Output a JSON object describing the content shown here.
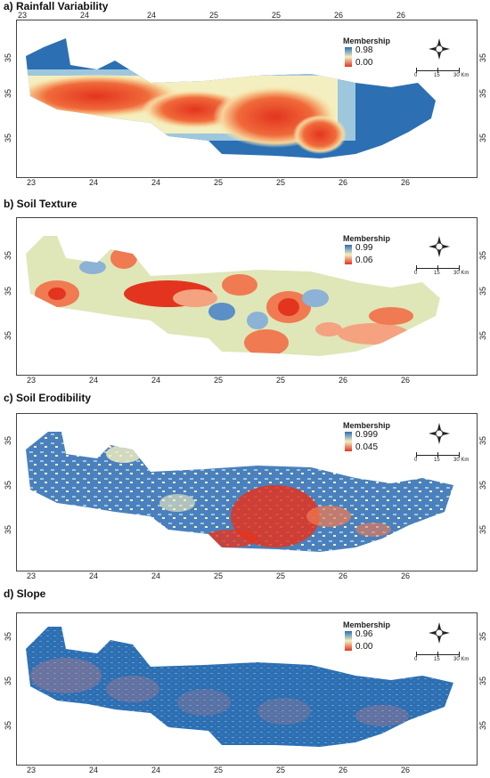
{
  "panels": [
    {
      "title": "a) Rainfall  Variability",
      "legend_title": "Membership",
      "max": "0.98",
      "min": "0.00"
    },
    {
      "title": "b) Soil Texture",
      "legend_title": "Membership",
      "max": "0.99",
      "min": "0.06"
    },
    {
      "title": "c) Soil Erodibility",
      "legend_title": "Membership",
      "max": "0.999",
      "min": "0.045"
    },
    {
      "title": "d) Slope",
      "legend_title": "Membership",
      "max": "0.96",
      "min": "0.00"
    }
  ],
  "x_ticks": [
    "23",
    "24",
    "24",
    "25",
    "25",
    "26",
    "26"
  ],
  "x_tick_sub": [
    "000000",
    "500000",
    "000000",
    "500000",
    "000000",
    "500000",
    "000000"
  ],
  "y_ticks": [
    "35",
    "35",
    "35"
  ],
  "scale_labels": {
    "zero": "0",
    "mid": "15",
    "end": "30 Km"
  },
  "north_labels": {
    "n": "N",
    "s": "S",
    "e": "E",
    "w": "W"
  },
  "colors": {
    "high": "#2c6fb3",
    "mid": "#f4efc0",
    "low": "#e3341f"
  }
}
